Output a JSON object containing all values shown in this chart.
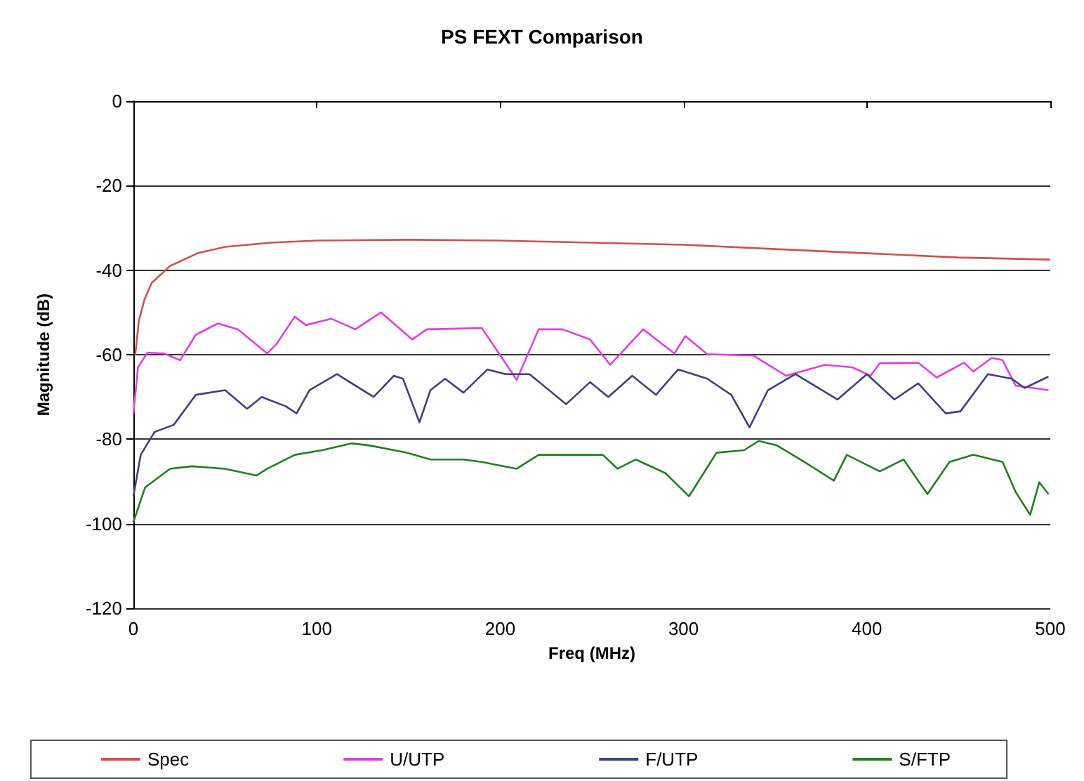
{
  "chart_data": {
    "type": "line",
    "title": "PS FEXT Comparison",
    "xlabel": "Freq (MHz)",
    "ylabel": "Magnitude (dB)",
    "xlim": [
      0,
      500
    ],
    "xticks": [
      0,
      100,
      200,
      300,
      400,
      500
    ],
    "ylim": [
      -120,
      0
    ],
    "yticks": [
      -120,
      -100,
      -80,
      -60,
      -40,
      -20,
      0
    ],
    "grid": "y",
    "legend": "bottom",
    "marker": "none",
    "line_style": "solid",
    "series": [
      {
        "name": "Spec",
        "color": "#d0504f",
        "x": [
          1,
          3,
          6,
          10,
          20,
          35,
          50,
          75,
          100,
          150,
          200,
          250,
          300,
          350,
          400,
          450,
          500
        ],
        "values": [
          -60,
          -52,
          -47,
          -43,
          -39,
          -36,
          -34.5,
          -33.5,
          -33,
          -32.8,
          -33,
          -33.5,
          -34,
          -35,
          -36,
          -37,
          -37.5
        ]
      },
      {
        "name": "U/UTP",
        "color": "#e040e0",
        "x": [
          0,
          2.5,
          7.7,
          16.6,
          25.5,
          34,
          46,
          57,
          73,
          78,
          88,
          94,
          108,
          121,
          135,
          152,
          160,
          190,
          206,
          209,
          221,
          234,
          249,
          260,
          278,
          295,
          301,
          313,
          338,
          356,
          377,
          392,
          402,
          407,
          428,
          438,
          453,
          458,
          468,
          474,
          481,
          499
        ],
        "values": [
          -74,
          -63,
          -59.5,
          -59.7,
          -61.3,
          -55.3,
          -52.6,
          -54,
          -59.7,
          -57.5,
          -51,
          -53,
          -51.5,
          -54,
          -50,
          -56.4,
          -54,
          -53.7,
          -64,
          -66,
          -54,
          -54,
          -56.4,
          -62.4,
          -54,
          -59.7,
          -55.6,
          -59.9,
          -60.2,
          -65,
          -62.4,
          -63,
          -65,
          -62,
          -61.9,
          -65.4,
          -61.9,
          -64,
          -60.8,
          -61.3,
          -67.3,
          -68.4
        ]
      },
      {
        "name": "F/UTP",
        "color": "#404080",
        "x": [
          0,
          4,
          11.5,
          22,
          34,
          50,
          62,
          70,
          83,
          89,
          96,
          111,
          131,
          142,
          147,
          156,
          162,
          170,
          180,
          193,
          203,
          216,
          236,
          249,
          259,
          272,
          285,
          297,
          313,
          326,
          336,
          346,
          361,
          384,
          400,
          415,
          428,
          443,
          451,
          466,
          479,
          486,
          499
        ],
        "values": [
          -93.5,
          -83.7,
          -78.3,
          -76.6,
          -69.5,
          -68.4,
          -72.8,
          -70,
          -72.2,
          -73.9,
          -68.4,
          -64.6,
          -70,
          -65,
          -65.7,
          -76,
          -68.4,
          -65.7,
          -69,
          -63.5,
          -64.6,
          -64.6,
          -71.7,
          -66.5,
          -70,
          -65,
          -69.5,
          -63.5,
          -65.7,
          -69.5,
          -77.2,
          -68.4,
          -64.6,
          -70.6,
          -64.6,
          -70.6,
          -66.8,
          -73.9,
          -73.4,
          -64.6,
          -65.7,
          -67.9,
          -65.2
        ]
      },
      {
        "name": "S/FTP",
        "color": "#208020",
        "x": [
          0,
          6.4,
          20,
          32,
          50,
          67,
          73,
          88,
          103,
          119,
          129,
          149,
          162,
          180,
          190,
          209,
          221,
          239,
          256,
          264,
          274,
          290,
          303,
          318,
          333,
          341,
          351,
          366,
          382,
          389,
          407,
          420,
          433,
          445,
          458,
          474,
          481,
          489,
          494,
          499
        ],
        "values": [
          -99.6,
          -91.4,
          -87,
          -86.4,
          -87,
          -88.6,
          -87,
          -83.7,
          -82.6,
          -81,
          -81.5,
          -83.2,
          -84.8,
          -84.8,
          -85.4,
          -87,
          -83.7,
          -83.7,
          -83.7,
          -87,
          -84.8,
          -88,
          -93.5,
          -83.2,
          -82.6,
          -80.4,
          -81.5,
          -85.4,
          -89.8,
          -83.7,
          -87.6,
          -84.8,
          -93,
          -85.4,
          -83.7,
          -85.4,
          -92.4,
          -97.9,
          -90.2,
          -93
        ]
      }
    ]
  }
}
